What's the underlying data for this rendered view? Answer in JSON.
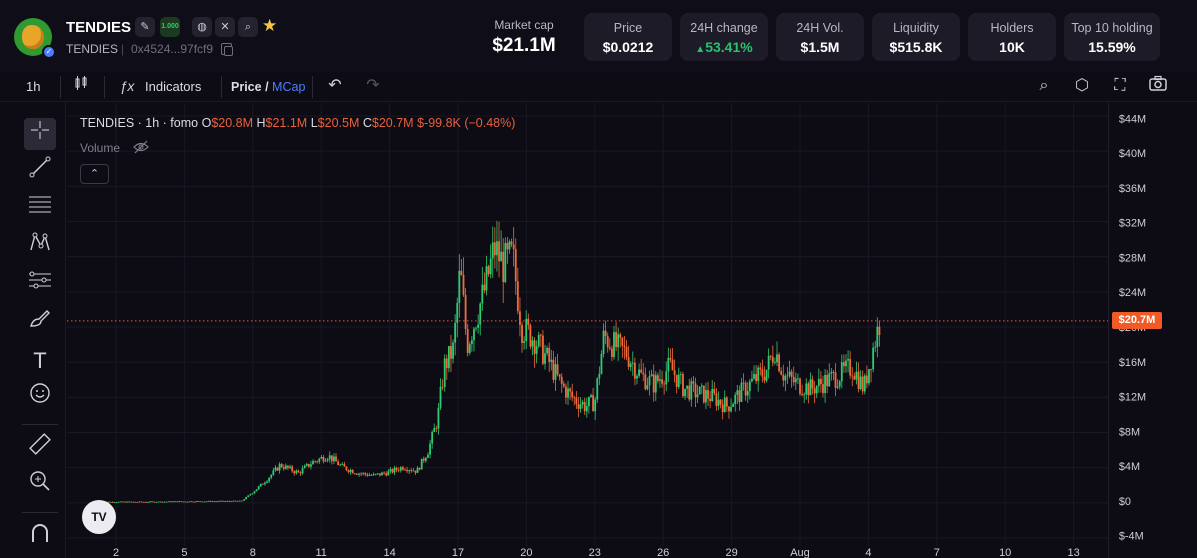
{
  "header": {
    "name": "TENDIES",
    "symbol": "TENDIES",
    "address": "0x4524...97fcf9",
    "fomo_badge": "1.000",
    "market_cap": {
      "label": "Market cap",
      "value": "$21.1M"
    },
    "stats": [
      {
        "label": "Price",
        "value": "$0.0212",
        "trend": ""
      },
      {
        "label": "24H change",
        "value": "53.41%",
        "trend": "up"
      },
      {
        "label": "24H Vol.",
        "value": "$1.5M",
        "trend": ""
      },
      {
        "label": "Liquidity",
        "value": "$515.8K",
        "trend": ""
      },
      {
        "label": "Holders",
        "value": "10K",
        "trend": ""
      },
      {
        "label": "Top 10 holding",
        "value": "15.59%",
        "trend": ""
      }
    ],
    "up_color": "#27c26b"
  },
  "toolbar": {
    "interval": "1h",
    "indicators_label": "Indicators",
    "price_label": "Price",
    "slash": "/",
    "mcap_label": "MCap"
  },
  "legend": {
    "title": "TENDIES · 1h · fomo",
    "o_key": "O",
    "o_val": "$20.8M",
    "h_key": "H",
    "h_val": "$21.1M",
    "l_key": "L",
    "l_val": "$20.5M",
    "c_key": "C",
    "c_val": "$20.7M",
    "change": "$-99.8K (−0.48%)",
    "volume_label": "Volume"
  },
  "chart_data": {
    "type": "candlestick",
    "ylim": [
      -4,
      44
    ],
    "y_ticks": [
      "$44M",
      "$40M",
      "$36M",
      "$32M",
      "$28M",
      "$24M",
      "$20M",
      "$16M",
      "$12M",
      "$8M",
      "$4M",
      "$0",
      "$-4M"
    ],
    "y_tick_values": [
      44,
      40,
      36,
      32,
      28,
      24,
      20,
      16,
      12,
      8,
      4,
      0,
      -4
    ],
    "x_ticks": [
      "2",
      "5",
      "8",
      "11",
      "14",
      "17",
      "20",
      "23",
      "26",
      "29",
      "Aug",
      "4",
      "7",
      "10",
      "13"
    ],
    "x_tick_values": [
      2,
      5,
      8,
      11,
      14,
      17,
      20,
      23,
      26,
      29,
      32,
      35,
      38,
      41,
      44
    ],
    "last_price": 20.7,
    "last_price_label": "$20.7M",
    "up_color": "#2ecc71",
    "down_color": "#f26b3a",
    "close_path": [
      [
        1.2,
        0.1
      ],
      [
        3,
        0.1
      ],
      [
        5,
        0.15
      ],
      [
        7.5,
        0.2
      ],
      [
        8,
        1.2
      ],
      [
        8.6,
        2.6
      ],
      [
        9.2,
        4.3
      ],
      [
        10,
        3.4
      ],
      [
        10.6,
        4.6
      ],
      [
        11.3,
        5.4
      ],
      [
        11.9,
        4.1
      ],
      [
        12.6,
        3.4
      ],
      [
        13.3,
        3.1
      ],
      [
        14,
        3.5
      ],
      [
        14.6,
        4.1
      ],
      [
        15.2,
        3.6
      ],
      [
        15.7,
        6.0
      ],
      [
        16.1,
        9.5
      ],
      [
        16.4,
        15.5
      ],
      [
        16.8,
        17.5
      ],
      [
        17.1,
        26.5
      ],
      [
        17.4,
        18.0
      ],
      [
        17.9,
        22.0
      ],
      [
        18.2,
        24.5
      ],
      [
        18.6,
        29.0
      ],
      [
        19,
        27.0
      ],
      [
        19.4,
        28.0
      ],
      [
        19.8,
        20.0
      ],
      [
        20.4,
        18.5
      ],
      [
        21,
        16.0
      ],
      [
        21.5,
        13.5
      ],
      [
        22,
        12.0
      ],
      [
        22.6,
        11.0
      ],
      [
        23,
        11.5
      ],
      [
        23.4,
        19.0
      ],
      [
        23.8,
        18.0
      ],
      [
        24.4,
        17.0
      ],
      [
        25,
        14.5
      ],
      [
        25.6,
        13.5
      ],
      [
        26.3,
        15.5
      ],
      [
        26.9,
        13.0
      ],
      [
        27.5,
        12.5
      ],
      [
        28.2,
        12.0
      ],
      [
        28.8,
        11.0
      ],
      [
        29.4,
        12.5
      ],
      [
        30,
        14.0
      ],
      [
        30.5,
        15.0
      ],
      [
        30.9,
        17.5
      ],
      [
        31.3,
        14.5
      ],
      [
        31.9,
        13.5
      ],
      [
        32.5,
        13.0
      ],
      [
        33.1,
        13.8
      ],
      [
        33.7,
        14.5
      ],
      [
        34.3,
        15.5
      ],
      [
        34.8,
        13.0
      ],
      [
        35.2,
        17.5
      ],
      [
        35.5,
        20.7
      ]
    ]
  },
  "icons": {
    "tool_crosshair": "crosshair-icon",
    "tool_trend": "trend-line-icon",
    "tool_fib": "fib-icon",
    "tool_pattern": "pattern-icon",
    "tool_prediction": "prediction-icon",
    "tool_brush": "brush-icon",
    "tool_text": "text-icon",
    "tool_emoji": "emoji-icon",
    "tool_ruler": "ruler-icon",
    "tool_zoom": "zoom-icon",
    "tool_magnet": "magnet-icon"
  }
}
